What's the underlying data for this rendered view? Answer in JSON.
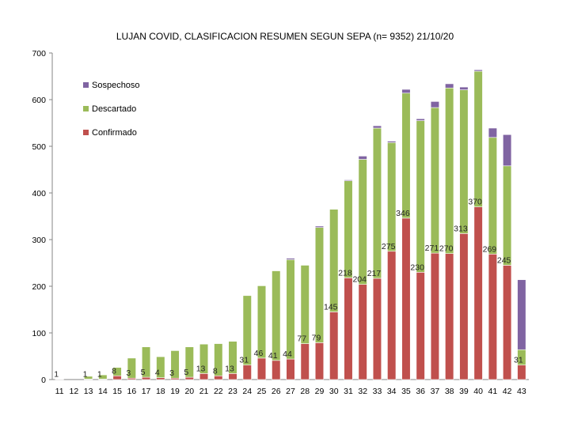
{
  "chart_data": {
    "type": "bar",
    "stacked": true,
    "title": "LUJAN COVID, CLASIFICACION RESUMEN SEGUN SEPA (n= 9352) 21/10/20",
    "xlabel": "",
    "ylabel": "",
    "ylim": [
      0,
      700
    ],
    "yticks": [
      0,
      100,
      200,
      300,
      400,
      500,
      600,
      700
    ],
    "grid": false,
    "legend_position": "upper-left",
    "categories": [
      "11",
      "12",
      "13",
      "14",
      "15",
      "16",
      "17",
      "18",
      "19",
      "20",
      "21",
      "22",
      "23",
      "24",
      "25",
      "26",
      "27",
      "28",
      "29",
      "30",
      "31",
      "32",
      "33",
      "34",
      "35",
      "36",
      "37",
      "38",
      "39",
      "40",
      "41",
      "42",
      "43"
    ],
    "series": [
      {
        "name": "Confirmado",
        "color": "#c0504d",
        "values": [
          1,
          0,
          1,
          1,
          8,
          3,
          5,
          4,
          3,
          5,
          13,
          8,
          13,
          31,
          46,
          41,
          44,
          77,
          79,
          145,
          218,
          204,
          217,
          275,
          346,
          230,
          271,
          270,
          313,
          370,
          269,
          245,
          31
        ]
      },
      {
        "name": "Descartado",
        "color": "#9bbb59",
        "values": [
          0,
          0,
          6,
          9,
          18,
          43,
          65,
          45,
          59,
          65,
          63,
          69,
          69,
          149,
          155,
          192,
          213,
          168,
          247,
          220,
          208,
          268,
          322,
          233,
          268,
          325,
          312,
          355,
          308,
          291,
          250,
          213,
          33
        ]
      },
      {
        "name": "Sospechoso",
        "color": "#8064a2",
        "values": [
          0,
          0,
          0,
          0,
          0,
          0,
          0,
          0,
          0,
          0,
          0,
          0,
          0,
          0,
          0,
          0,
          3,
          0,
          3,
          0,
          2,
          7,
          5,
          3,
          8,
          4,
          13,
          9,
          6,
          3,
          20,
          67,
          150
        ]
      }
    ],
    "data_labels": {
      "series": "Confirmado",
      "shown": [
        true,
        false,
        true,
        true,
        true,
        true,
        true,
        true,
        true,
        true,
        true,
        true,
        true,
        true,
        true,
        true,
        true,
        true,
        true,
        true,
        true,
        true,
        true,
        true,
        true,
        true,
        true,
        true,
        true,
        true,
        true,
        true,
        true
      ]
    }
  }
}
